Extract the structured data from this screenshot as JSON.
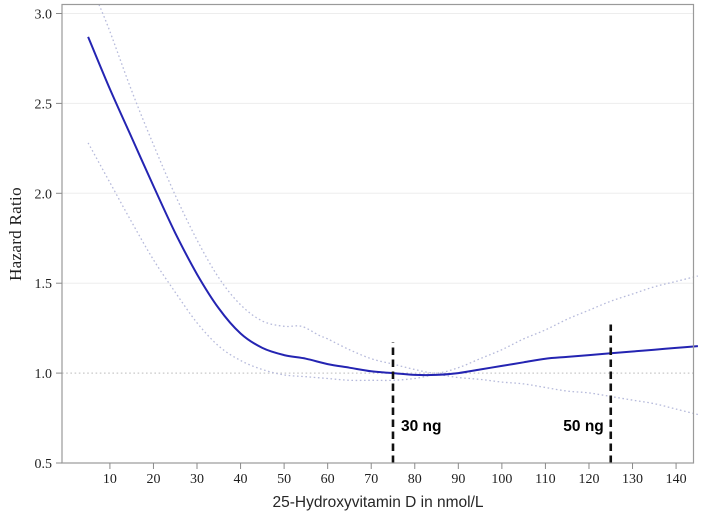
{
  "chart_data": {
    "type": "line",
    "title": "",
    "xlabel": "25-Hydroxyvitamin D in nmol/L",
    "ylabel": "Hazard Ratio",
    "xlim": [
      -1,
      144
    ],
    "ylim": [
      0.5,
      3.05
    ],
    "grid": "faint horizontal lines at labeled hazard ratios",
    "legend_position": "none",
    "x_ticks": [
      10,
      20,
      30,
      40,
      50,
      60,
      70,
      80,
      90,
      100,
      110,
      120,
      130,
      140
    ],
    "y_ticks": [
      {
        "v": 0.5,
        "label": "0.5"
      },
      {
        "v": 1.0,
        "label": "1.0"
      },
      {
        "v": 1.5,
        "label": "1.5"
      },
      {
        "v": 2.0,
        "label": "2.0"
      },
      {
        "v": 2.5,
        "label": "2.5"
      },
      {
        "v": 3.0,
        "label": "3.0"
      }
    ],
    "grid_y": [
      1.5,
      2.0,
      2.5,
      3.0
    ],
    "reference_line_y": 1.0,
    "series": [
      {
        "name": "hazard-ratio-spline",
        "style": "solid",
        "color": "#2424b2",
        "width": 2,
        "points": [
          [
            5,
            2.87
          ],
          [
            10,
            2.58
          ],
          [
            15,
            2.31
          ],
          [
            20,
            2.04
          ],
          [
            25,
            1.78
          ],
          [
            30,
            1.55
          ],
          [
            35,
            1.36
          ],
          [
            40,
            1.22
          ],
          [
            45,
            1.14
          ],
          [
            50,
            1.1
          ],
          [
            55,
            1.08
          ],
          [
            60,
            1.05
          ],
          [
            65,
            1.03
          ],
          [
            70,
            1.01
          ],
          [
            75,
            1.0
          ],
          [
            80,
            0.99
          ],
          [
            85,
            0.99
          ],
          [
            90,
            1.0
          ],
          [
            95,
            1.02
          ],
          [
            100,
            1.04
          ],
          [
            105,
            1.06
          ],
          [
            110,
            1.08
          ],
          [
            115,
            1.09
          ],
          [
            120,
            1.1
          ],
          [
            125,
            1.11
          ],
          [
            130,
            1.12
          ],
          [
            135,
            1.13
          ],
          [
            140,
            1.14
          ],
          [
            145,
            1.15
          ]
        ]
      },
      {
        "name": "upper-confidence-limit",
        "style": "dotted",
        "color": "#b6badb",
        "width": 1.3,
        "points": [
          [
            7.5,
            3.05
          ],
          [
            10,
            2.9
          ],
          [
            15,
            2.57
          ],
          [
            20,
            2.27
          ],
          [
            25,
            1.99
          ],
          [
            30,
            1.74
          ],
          [
            35,
            1.53
          ],
          [
            40,
            1.38
          ],
          [
            45,
            1.29
          ],
          [
            50,
            1.26
          ],
          [
            54,
            1.26
          ],
          [
            58,
            1.21
          ],
          [
            60,
            1.19
          ],
          [
            65,
            1.13
          ],
          [
            70,
            1.08
          ],
          [
            75,
            1.05
          ],
          [
            80,
            1.02
          ],
          [
            85,
            1.0
          ],
          [
            90,
            1.03
          ],
          [
            95,
            1.08
          ],
          [
            100,
            1.13
          ],
          [
            105,
            1.19
          ],
          [
            110,
            1.24
          ],
          [
            115,
            1.3
          ],
          [
            120,
            1.35
          ],
          [
            125,
            1.4
          ],
          [
            130,
            1.44
          ],
          [
            135,
            1.48
          ],
          [
            140,
            1.51
          ],
          [
            145,
            1.54
          ]
        ]
      },
      {
        "name": "lower-confidence-limit",
        "style": "dotted",
        "color": "#b6badb",
        "width": 1.3,
        "points": [
          [
            5,
            2.28
          ],
          [
            10,
            2.06
          ],
          [
            15,
            1.84
          ],
          [
            20,
            1.63
          ],
          [
            25,
            1.45
          ],
          [
            30,
            1.28
          ],
          [
            35,
            1.15
          ],
          [
            40,
            1.07
          ],
          [
            45,
            1.02
          ],
          [
            50,
            0.99
          ],
          [
            55,
            0.98
          ],
          [
            60,
            0.97
          ],
          [
            65,
            0.96
          ],
          [
            70,
            0.96
          ],
          [
            75,
            0.96
          ],
          [
            80,
            0.97
          ],
          [
            85,
            0.99
          ],
          [
            90,
            0.975
          ],
          [
            95,
            0.965
          ],
          [
            100,
            0.95
          ],
          [
            105,
            0.94
          ],
          [
            110,
            0.92
          ],
          [
            115,
            0.9
          ],
          [
            120,
            0.89
          ],
          [
            125,
            0.87
          ],
          [
            130,
            0.85
          ],
          [
            135,
            0.83
          ],
          [
            140,
            0.8
          ],
          [
            145,
            0.77
          ]
        ]
      }
    ],
    "annotations": [
      {
        "text": "30 ng",
        "x": 75,
        "line_top": 1.17,
        "label_y": 0.7,
        "side": "right"
      },
      {
        "text": "50 ng",
        "x": 125,
        "line_top": 1.27,
        "label_y": 0.7,
        "side": "left"
      }
    ],
    "colors": {
      "main": "#2424b2",
      "ci": "#b6badb",
      "reference": "#c9c9c9",
      "grid": "#ededed",
      "frame": "#9a9a9a",
      "tick": "#8a8a8a",
      "vline": "#111111"
    }
  }
}
